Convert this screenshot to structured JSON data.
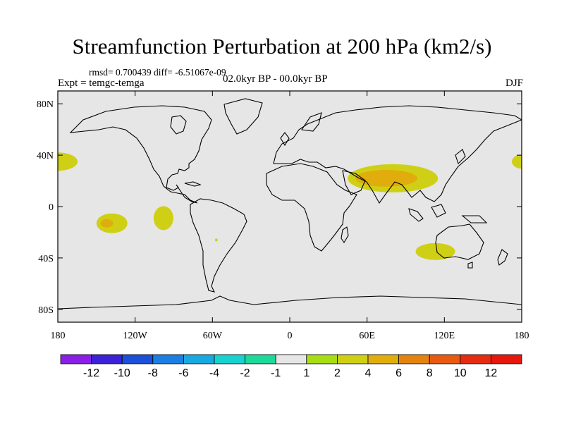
{
  "chart_data": {
    "type": "heatmap",
    "title": "Streamfunction Perturbation at 200 hPa (km2/s)",
    "stats_text": "rmsd= 0.700439 diff= -6.51067e-09",
    "experiment_text": "Expt = temgc-temga",
    "period_text": "02.0kyr BP - 00.0kyr BP",
    "season_text": "DJF",
    "x_ticks": [
      "180",
      "120W",
      "60W",
      "0",
      "60E",
      "120E",
      "180"
    ],
    "y_ticks": [
      "80N",
      "40N",
      "0",
      "40S",
      "80S"
    ],
    "xlim": [
      -180,
      180
    ],
    "ylim": [
      -90,
      90
    ],
    "colorbar": {
      "labels": [
        "-12",
        "-10",
        "-8",
        "-6",
        "-4",
        "-2",
        "-1",
        "1",
        "2",
        "4",
        "6",
        "8",
        "10",
        "12"
      ],
      "colors": [
        "#8b1fe6",
        "#3b22d6",
        "#1c50d8",
        "#1a7fe0",
        "#19a9e0",
        "#19d2cf",
        "#1ed99a",
        "#e6e6e6",
        "#a6dd15",
        "#cfd015",
        "#e0ad0c",
        "#e58310",
        "#e65a12",
        "#e62c10",
        "#e6170d"
      ]
    },
    "anomalies": [
      {
        "name": "north-pacific-west-positive",
        "lon": -180,
        "lat": 35,
        "value": 2
      },
      {
        "name": "north-pacific-negative",
        "lon": -140,
        "lat": 36,
        "value": -1
      },
      {
        "name": "pacific-tropical-negative",
        "lon": -155,
        "lat": 15,
        "value": -1
      },
      {
        "name": "tropical-pacific-negative",
        "lon": -120,
        "lat": 4,
        "value": -1
      },
      {
        "name": "south-pacific-positive",
        "lon": -138,
        "lat": -13,
        "value": 2
      },
      {
        "name": "south-pacific-core",
        "lon": -142,
        "lat": -13,
        "value": 4
      },
      {
        "name": "south-pacific-negative",
        "lon": -135,
        "lat": -33,
        "value": -1
      },
      {
        "name": "east-pacific-positive",
        "lon": -98,
        "lat": -9,
        "value": 2
      },
      {
        "name": "north-america-negative",
        "lon": -90,
        "lat": 30,
        "value": -1
      },
      {
        "name": "central-atlantic-negative",
        "lon": -40,
        "lat": 28,
        "value": -1
      },
      {
        "name": "south-america-positive",
        "lon": -57,
        "lat": -26,
        "value": 2
      },
      {
        "name": "north-africa-negative",
        "lon": 10,
        "lat": 28,
        "value": -1
      },
      {
        "name": "india-asia-positive",
        "lon": 80,
        "lat": 22,
        "value": 2
      },
      {
        "name": "india-asia-core",
        "lon": 75,
        "lat": 22,
        "value": 4
      },
      {
        "name": "indian-ocean-negative",
        "lon": 55,
        "lat": -20,
        "value": -1
      },
      {
        "name": "northwest-pacific-negative",
        "lon": 140,
        "lat": 20,
        "value": -1
      },
      {
        "name": "north-pacific-east-positive",
        "lon": 180,
        "lat": 35,
        "value": 2
      },
      {
        "name": "australia-positive",
        "lon": 113,
        "lat": -35,
        "value": 2
      }
    ]
  }
}
